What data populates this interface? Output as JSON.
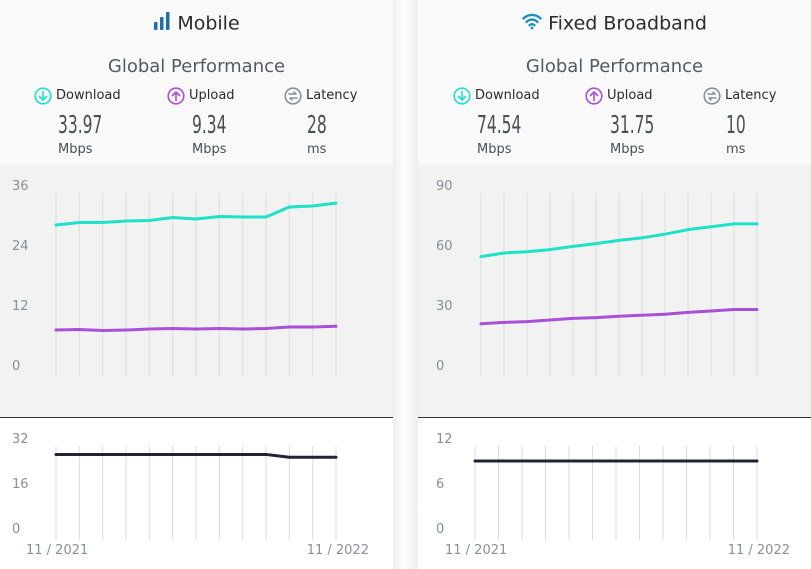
{
  "colors": {
    "download": "#1de2c8",
    "upload": "#a94fd8",
    "latency": "#1f2537",
    "mobile_icon": "#1d6fae",
    "fixed_icon": "#1d8fc6",
    "grid": "#dcdcdc"
  },
  "panels": [
    {
      "id": "mobile",
      "title": "Mobile",
      "icon": "signal-bars-icon",
      "subtitle": "Global Performance",
      "metrics": {
        "download": {
          "label": "Download",
          "value": "33.97",
          "unit": "Mbps"
        },
        "upload": {
          "label": "Upload",
          "value": "9.34",
          "unit": "Mbps"
        },
        "latency": {
          "label": "Latency",
          "value": "28",
          "unit": "ms"
        }
      }
    },
    {
      "id": "fixed",
      "title": "Fixed Broadband",
      "icon": "wifi-icon",
      "subtitle": "Global Performance",
      "metrics": {
        "download": {
          "label": "Download",
          "value": "74.54",
          "unit": "Mbps"
        },
        "upload": {
          "label": "Upload",
          "value": "31.75",
          "unit": "Mbps"
        },
        "latency": {
          "label": "Latency",
          "value": "10",
          "unit": "ms"
        }
      }
    }
  ],
  "chart_data": [
    {
      "type": "line",
      "panel": "mobile",
      "chart": "speed",
      "x": [
        "11/2021",
        "12/2021",
        "1/2022",
        "2/2022",
        "3/2022",
        "4/2022",
        "5/2022",
        "6/2022",
        "7/2022",
        "8/2022",
        "9/2022",
        "10/2022",
        "11/2022"
      ],
      "series": [
        {
          "name": "Download",
          "values": [
            29.6,
            30.1,
            30.1,
            30.4,
            30.5,
            31.1,
            30.8,
            31.3,
            31.2,
            31.2,
            33.2,
            33.4,
            33.97
          ]
        },
        {
          "name": "Upload",
          "values": [
            8.6,
            8.7,
            8.5,
            8.6,
            8.8,
            8.9,
            8.8,
            8.9,
            8.8,
            8.9,
            9.2,
            9.2,
            9.34
          ]
        }
      ],
      "yticks": [
        0,
        12,
        24,
        36
      ],
      "ylim": [
        0,
        36
      ],
      "grid": true
    },
    {
      "type": "line",
      "panel": "mobile",
      "chart": "latency",
      "x": [
        "11/2021",
        "12/2021",
        "1/2022",
        "2/2022",
        "3/2022",
        "4/2022",
        "5/2022",
        "6/2022",
        "7/2022",
        "8/2022",
        "9/2022",
        "10/2022",
        "11/2022"
      ],
      "xticks": [
        "11 / 2021",
        "11 / 2022"
      ],
      "series": [
        {
          "name": "Latency",
          "values": [
            29,
            29,
            29,
            29,
            29,
            29,
            29,
            29,
            29,
            29,
            28,
            28,
            28
          ]
        }
      ],
      "yticks": [
        0,
        16,
        32
      ],
      "ylim": [
        0,
        32
      ],
      "grid": true
    },
    {
      "type": "line",
      "panel": "fixed",
      "chart": "speed",
      "x": [
        "11/2021",
        "12/2021",
        "1/2022",
        "2/2022",
        "3/2022",
        "4/2022",
        "5/2022",
        "6/2022",
        "7/2022",
        "8/2022",
        "9/2022",
        "10/2022",
        "11/2022"
      ],
      "series": [
        {
          "name": "Download",
          "values": [
            58.2,
            60.0,
            60.6,
            61.7,
            63.3,
            64.7,
            66.3,
            67.6,
            69.4,
            71.7,
            73.1,
            74.54,
            74.54
          ]
        },
        {
          "name": "Upload",
          "values": [
            24.6,
            25.3,
            25.7,
            26.5,
            27.3,
            27.7,
            28.4,
            28.9,
            29.4,
            30.3,
            31.0,
            31.75,
            31.75
          ]
        }
      ],
      "yticks": [
        0,
        30,
        60,
        90
      ],
      "ylim": [
        0,
        90
      ],
      "grid": true
    },
    {
      "type": "line",
      "panel": "fixed",
      "chart": "latency",
      "x": [
        "11/2021",
        "12/2021",
        "1/2022",
        "2/2022",
        "3/2022",
        "4/2022",
        "5/2022",
        "6/2022",
        "7/2022",
        "8/2022",
        "9/2022",
        "10/2022",
        "11/2022"
      ],
      "xticks": [
        "11 / 2021",
        "11 / 2022"
      ],
      "series": [
        {
          "name": "Latency",
          "values": [
            10,
            10,
            10,
            10,
            10,
            10,
            10,
            10,
            10,
            10,
            10,
            10,
            10
          ]
        }
      ],
      "yticks": [
        0,
        6,
        12
      ],
      "ylim": [
        0,
        12
      ],
      "grid": true
    }
  ]
}
